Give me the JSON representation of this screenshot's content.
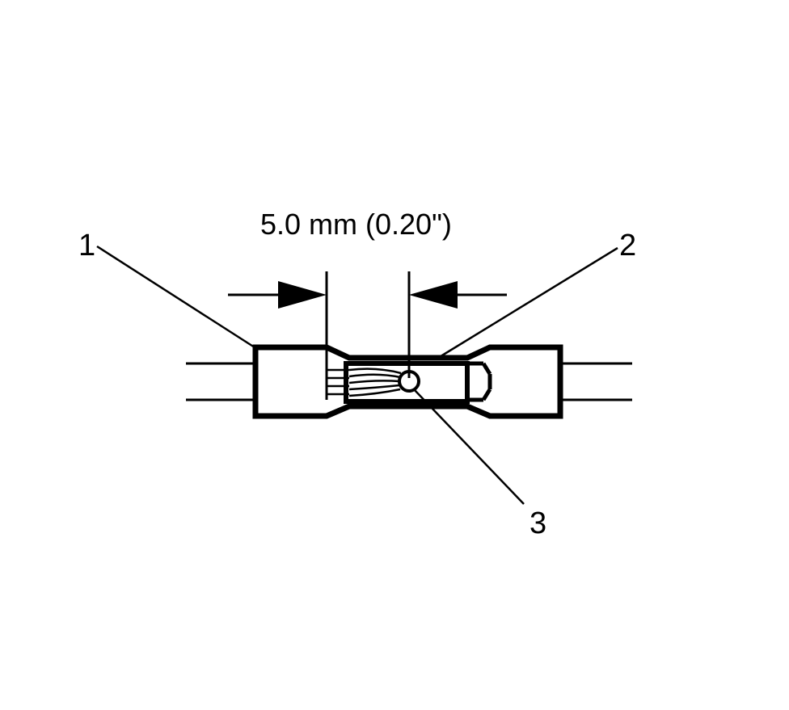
{
  "diagram": {
    "dimension_label": "5.0 mm (0.20\")",
    "callouts": {
      "one": "1",
      "two": "2",
      "three": "3"
    },
    "colors": {
      "ink": "#000000",
      "background": "#ffffff"
    }
  }
}
